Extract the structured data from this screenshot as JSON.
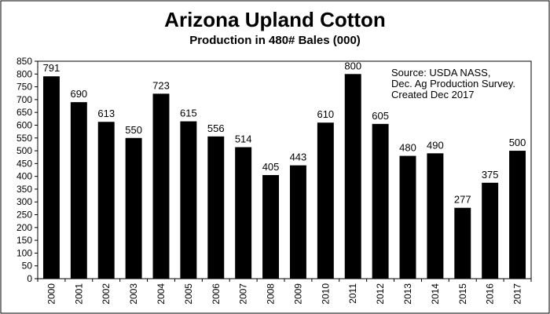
{
  "chart_data": {
    "type": "bar",
    "title": "Arizona Upland Cotton",
    "subtitle": "Production in  480# Bales (000)",
    "categories": [
      "2000",
      "2001",
      "2002",
      "2003",
      "2004",
      "2005",
      "2006",
      "2007",
      "2008",
      "2009",
      "2010",
      "2011",
      "2012",
      "2013",
      "2014",
      "2015",
      "2016",
      "2017"
    ],
    "values": [
      791,
      690,
      613,
      550,
      723,
      615,
      556,
      514,
      405,
      443,
      610,
      800,
      605,
      480,
      490,
      277,
      375,
      500
    ],
    "ylim": [
      0,
      850
    ],
    "yticks": [
      0,
      50,
      100,
      150,
      200,
      250,
      300,
      350,
      400,
      450,
      500,
      550,
      600,
      650,
      700,
      750,
      800,
      850
    ],
    "xlabel": "",
    "ylabel": "",
    "grid": false,
    "bar_color": "#000000",
    "annotation": [
      "Source: USDA NASS,",
      "Dec. Ag Production Survey.",
      "Created Dec 2017"
    ]
  }
}
